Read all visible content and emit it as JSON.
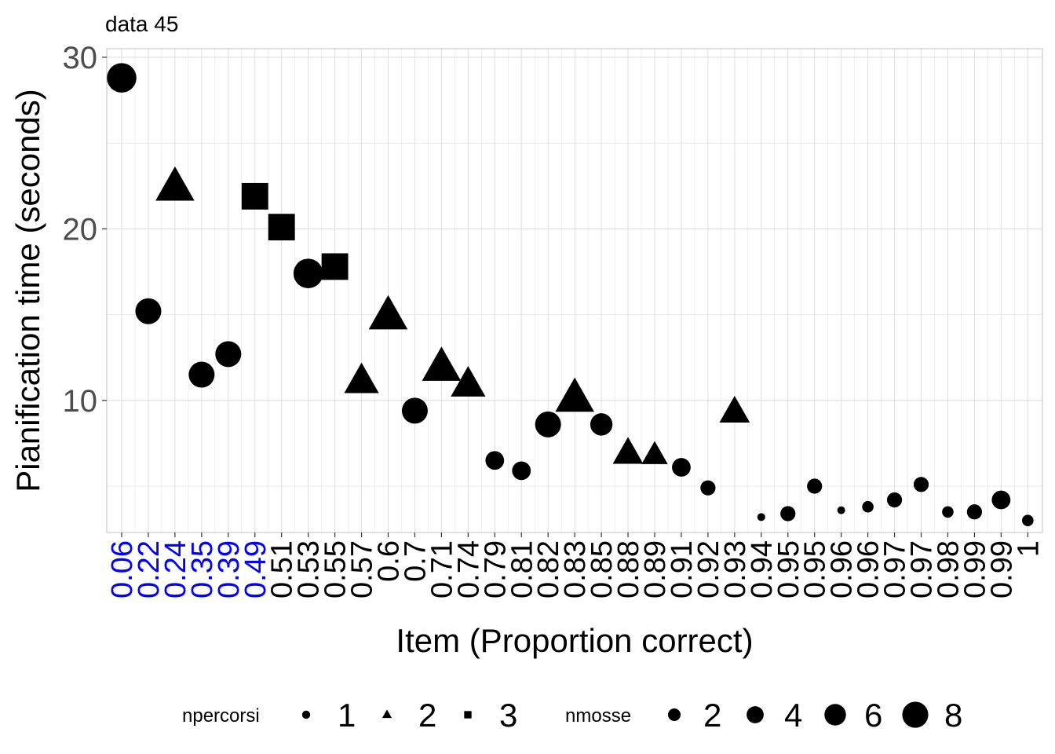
{
  "chart_data": {
    "type": "scatter",
    "subtitle": "data 45",
    "xlabel": "Item (Proportion correct)",
    "ylabel": "Pianification time (seconds)",
    "ylim": [
      2.3,
      30.5
    ],
    "yticks": [
      "10",
      "20",
      "30"
    ],
    "grid": true,
    "legend_position": "bottom",
    "colors": {
      "highlight_label": "#0000ff",
      "label": "#000000",
      "point": "#000000",
      "grid": "#dedede",
      "panel_border": "#cccccc"
    },
    "legends": [
      {
        "title": "npercorsi",
        "keys": [
          {
            "label": "1",
            "shape": "circle"
          },
          {
            "label": "2",
            "shape": "triangle"
          },
          {
            "label": "3",
            "shape": "square"
          }
        ]
      },
      {
        "title": "nmosse",
        "keys": [
          {
            "label": "2"
          },
          {
            "label": "4"
          },
          {
            "label": "6"
          },
          {
            "label": "8"
          }
        ]
      }
    ],
    "points": [
      {
        "label": "0.06",
        "y": 28.8,
        "npercorsi": 1,
        "nmosse": 7,
        "highlight": true
      },
      {
        "label": "0.22",
        "y": 15.2,
        "npercorsi": 1,
        "nmosse": 6,
        "highlight": true
      },
      {
        "label": "0.24",
        "y": 22.4,
        "npercorsi": 2,
        "nmosse": 8,
        "highlight": true
      },
      {
        "label": "0.35",
        "y": 11.5,
        "npercorsi": 1,
        "nmosse": 6,
        "highlight": true
      },
      {
        "label": "0.39",
        "y": 12.7,
        "npercorsi": 1,
        "nmosse": 6,
        "highlight": true
      },
      {
        "label": "0.49",
        "y": 21.9,
        "npercorsi": 3,
        "nmosse": 7,
        "highlight": true
      },
      {
        "label": "0.51",
        "y": 20.1,
        "npercorsi": 3,
        "nmosse": 7
      },
      {
        "label": "0.53",
        "y": 17.4,
        "npercorsi": 1,
        "nmosse": 7
      },
      {
        "label": "0.55",
        "y": 17.8,
        "npercorsi": 3,
        "nmosse": 7
      },
      {
        "label": "0.57",
        "y": 11.1,
        "npercorsi": 2,
        "nmosse": 7
      },
      {
        "label": "0.6",
        "y": 14.9,
        "npercorsi": 2,
        "nmosse": 8
      },
      {
        "label": "0.7",
        "y": 9.4,
        "npercorsi": 1,
        "nmosse": 6
      },
      {
        "label": "0.71",
        "y": 11.9,
        "npercorsi": 2,
        "nmosse": 8
      },
      {
        "label": "0.74",
        "y": 10.9,
        "npercorsi": 2,
        "nmosse": 7
      },
      {
        "label": "0.79",
        "y": 6.5,
        "npercorsi": 1,
        "nmosse": 4
      },
      {
        "label": "0.81",
        "y": 5.9,
        "npercorsi": 1,
        "nmosse": 4
      },
      {
        "label": "0.82",
        "y": 8.6,
        "npercorsi": 1,
        "nmosse": 6
      },
      {
        "label": "0.83",
        "y": 10.1,
        "npercorsi": 2,
        "nmosse": 8
      },
      {
        "label": "0.85",
        "y": 8.6,
        "npercorsi": 1,
        "nmosse": 5
      },
      {
        "label": "0.88",
        "y": 6.9,
        "npercorsi": 2,
        "nmosse": 6
      },
      {
        "label": "0.89",
        "y": 6.8,
        "npercorsi": 2,
        "nmosse": 5
      },
      {
        "label": "0.91",
        "y": 6.1,
        "npercorsi": 1,
        "nmosse": 4
      },
      {
        "label": "0.92",
        "y": 4.9,
        "npercorsi": 1,
        "nmosse": 3
      },
      {
        "label": "0.93",
        "y": 9.3,
        "npercorsi": 2,
        "nmosse": 6
      },
      {
        "label": "0.94",
        "y": 3.2,
        "npercorsi": 1,
        "nmosse": 1
      },
      {
        "label": "0.95",
        "y": 3.4,
        "npercorsi": 1,
        "nmosse": 3
      },
      {
        "label": "0.95",
        "y": 5.0,
        "npercorsi": 1,
        "nmosse": 3
      },
      {
        "label": "0.96",
        "y": 3.6,
        "npercorsi": 1,
        "nmosse": 1
      },
      {
        "label": "0.96",
        "y": 3.8,
        "npercorsi": 1,
        "nmosse": 2
      },
      {
        "label": "0.97",
        "y": 4.2,
        "npercorsi": 1,
        "nmosse": 3
      },
      {
        "label": "0.97",
        "y": 5.1,
        "npercorsi": 1,
        "nmosse": 3
      },
      {
        "label": "0.98",
        "y": 3.5,
        "npercorsi": 1,
        "nmosse": 2
      },
      {
        "label": "0.99",
        "y": 3.5,
        "npercorsi": 1,
        "nmosse": 3
      },
      {
        "label": "0.99",
        "y": 4.2,
        "npercorsi": 1,
        "nmosse": 4
      },
      {
        "label": "1",
        "y": 3.0,
        "npercorsi": 1,
        "nmosse": 2
      }
    ]
  }
}
